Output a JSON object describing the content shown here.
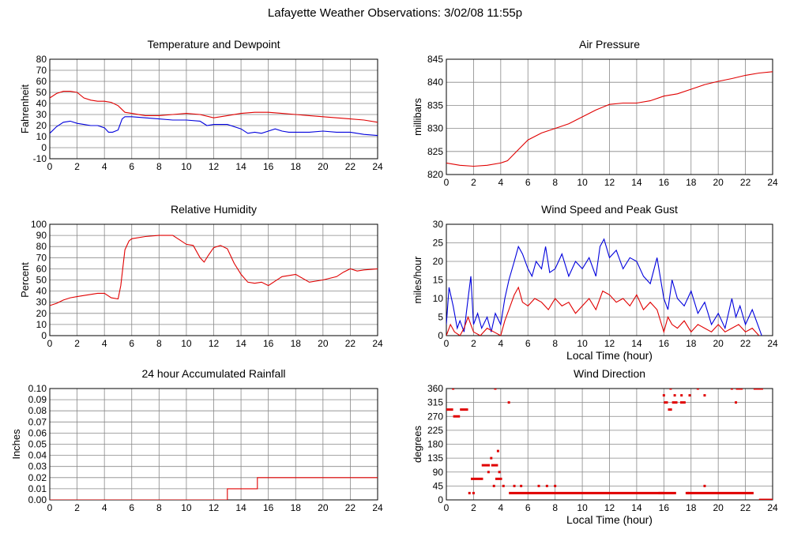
{
  "title": "Lafayette Weather Observations: 3/02/08 11:55p",
  "colors": {
    "red": "#e00000",
    "blue": "#0000dd",
    "grid": "#888888"
  },
  "chart_data": [
    {
      "id": "temp",
      "type": "line",
      "title": "Temperature and Dewpoint",
      "ylabel": "Fahrenheit",
      "xlabel": "",
      "xlim": [
        0,
        24
      ],
      "ylim": [
        -10,
        80
      ],
      "yticks": [
        -10,
        0,
        10,
        20,
        30,
        40,
        50,
        60,
        70,
        80
      ],
      "xticks": [
        0,
        2,
        4,
        6,
        8,
        10,
        12,
        14,
        16,
        18,
        20,
        22,
        24
      ],
      "series": [
        {
          "color": "#e00000",
          "x": [
            0,
            0.5,
            1,
            1.5,
            2,
            2.5,
            3,
            3.5,
            4,
            4.5,
            5,
            5.5,
            6,
            7,
            8,
            9,
            10,
            11,
            12,
            13,
            14,
            15,
            16,
            17,
            18,
            19,
            20,
            21,
            22,
            23,
            24
          ],
          "y": [
            45,
            49,
            51,
            51,
            50,
            45,
            43,
            42,
            42,
            41,
            38,
            32,
            31,
            29,
            29,
            30,
            31,
            30,
            27,
            29,
            31,
            32,
            32,
            31,
            30,
            29,
            28,
            27,
            26,
            25,
            23
          ]
        },
        {
          "color": "#0000dd",
          "x": [
            0,
            0.5,
            1,
            1.5,
            2,
            2.5,
            3,
            3.5,
            4,
            4.3,
            4.6,
            5,
            5.3,
            5.5,
            6,
            7,
            8,
            9,
            10,
            11,
            11.5,
            12,
            13,
            14,
            14.5,
            15,
            15.5,
            16,
            16.5,
            17,
            17.5,
            18,
            19,
            20,
            21,
            22,
            23,
            24
          ],
          "y": [
            13,
            19,
            23,
            24,
            22,
            21,
            20,
            20,
            18,
            14,
            14,
            16,
            26,
            28,
            28,
            27,
            26,
            25,
            25,
            24,
            20,
            21,
            21,
            17,
            13,
            14,
            13,
            15,
            17,
            15,
            14,
            14,
            14,
            15,
            14,
            14,
            12,
            11
          ]
        }
      ]
    },
    {
      "id": "pressure",
      "type": "line",
      "title": "Air Pressure",
      "ylabel": "millibars",
      "xlabel": "",
      "xlim": [
        0,
        24
      ],
      "ylim": [
        820,
        845
      ],
      "yticks": [
        820,
        825,
        830,
        835,
        840,
        845
      ],
      "xticks": [
        0,
        2,
        4,
        6,
        8,
        10,
        12,
        14,
        16,
        18,
        20,
        22,
        24
      ],
      "series": [
        {
          "color": "#e00000",
          "x": [
            0,
            1,
            2,
            3,
            4,
            4.5,
            5,
            5.5,
            6,
            7,
            8,
            9,
            10,
            11,
            12,
            13,
            14,
            15,
            16,
            17,
            18,
            19,
            20,
            21,
            22,
            23,
            24
          ],
          "y": [
            822.5,
            822,
            821.8,
            822,
            822.5,
            823,
            824.5,
            826,
            827.5,
            829,
            830,
            831,
            832.5,
            834,
            835.2,
            835.5,
            835.5,
            836,
            837,
            837.5,
            838.5,
            839.5,
            840.2,
            840.8,
            841.5,
            842,
            842.3
          ]
        }
      ]
    },
    {
      "id": "humidity",
      "type": "line",
      "title": "Relative Humidity",
      "ylabel": "Percent",
      "xlabel": "",
      "xlim": [
        0,
        24
      ],
      "ylim": [
        0,
        100
      ],
      "yticks": [
        0,
        10,
        20,
        30,
        40,
        50,
        60,
        70,
        80,
        90,
        100
      ],
      "xticks": [
        0,
        2,
        4,
        6,
        8,
        10,
        12,
        14,
        16,
        18,
        20,
        22,
        24
      ],
      "series": [
        {
          "color": "#e00000",
          "x": [
            0,
            0.5,
            1,
            1.5,
            2,
            2.5,
            3,
            3.5,
            4,
            4.5,
            5,
            5.2,
            5.5,
            5.8,
            6,
            7,
            8,
            9,
            9.5,
            10,
            10.5,
            11,
            11.3,
            11.6,
            12,
            12.5,
            13,
            13.5,
            14,
            14.5,
            15,
            15.5,
            16,
            16.5,
            17,
            17.5,
            18,
            19,
            20,
            21,
            21.5,
            22,
            22.5,
            23,
            24
          ],
          "y": [
            27,
            29,
            32,
            34,
            35,
            36,
            37,
            38,
            38,
            34,
            33,
            45,
            77,
            85,
            87,
            89,
            90,
            90,
            86,
            82,
            81,
            70,
            66,
            72,
            79,
            81,
            78,
            65,
            55,
            48,
            47,
            48,
            45,
            49,
            53,
            54,
            55,
            48,
            50,
            53,
            57,
            60,
            58,
            59,
            60
          ]
        }
      ]
    },
    {
      "id": "wind",
      "type": "line",
      "title": "Wind Speed and Peak Gust",
      "ylabel": "miles/hour",
      "xlabel": "Local Time (hour)",
      "xlim": [
        0,
        24
      ],
      "ylim": [
        0,
        30
      ],
      "yticks": [
        0,
        5,
        10,
        15,
        20,
        25,
        30
      ],
      "xticks": [
        0,
        2,
        4,
        6,
        8,
        10,
        12,
        14,
        16,
        18,
        20,
        22,
        24
      ],
      "series": [
        {
          "color": "#0000dd",
          "x": [
            0,
            0.2,
            0.5,
            0.8,
            1,
            1.3,
            1.6,
            1.8,
            2,
            2.3,
            2.6,
            3,
            3.3,
            3.6,
            4,
            4.3,
            4.6,
            5,
            5.3,
            5.6,
            6,
            6.3,
            6.6,
            7,
            7.3,
            7.6,
            8,
            8.5,
            9,
            9.5,
            10,
            10.5,
            11,
            11.3,
            11.6,
            12,
            12.5,
            13,
            13.5,
            14,
            14.5,
            15,
            15.5,
            16,
            16.3,
            16.6,
            17,
            17.5,
            18,
            18.5,
            19,
            19.5,
            20,
            20.5,
            21,
            21.3,
            21.6,
            22,
            22.5,
            23,
            23.2
          ],
          "y": [
            3,
            13,
            8,
            2,
            4,
            1,
            10,
            16,
            3,
            6,
            2,
            5,
            1,
            6,
            3,
            10,
            15,
            20,
            24,
            22,
            18,
            16,
            20,
            18,
            24,
            17,
            18,
            22,
            16,
            20,
            18,
            21,
            16,
            24,
            26,
            21,
            23,
            18,
            21,
            20,
            16,
            14,
            21,
            10,
            7,
            15,
            10,
            8,
            12,
            6,
            9,
            3,
            6,
            2,
            10,
            5,
            8,
            3,
            7,
            2,
            0
          ]
        },
        {
          "color": "#e00000",
          "x": [
            0,
            0.3,
            0.6,
            1,
            1.3,
            1.6,
            2,
            2.5,
            3,
            3.5,
            4,
            4.3,
            4.6,
            5,
            5.3,
            5.6,
            6,
            6.5,
            7,
            7.5,
            8,
            8.5,
            9,
            9.5,
            10,
            10.5,
            11,
            11.5,
            12,
            12.5,
            13,
            13.5,
            14,
            14.5,
            15,
            15.5,
            16,
            16.3,
            16.6,
            17,
            17.5,
            18,
            18.5,
            19,
            19.5,
            20,
            20.5,
            21,
            21.5,
            22,
            22.5,
            23
          ],
          "y": [
            0,
            3,
            1,
            0,
            2,
            5,
            1,
            0,
            2,
            1,
            0,
            4,
            7,
            11,
            13,
            9,
            8,
            10,
            9,
            7,
            10,
            8,
            9,
            6,
            8,
            10,
            7,
            12,
            11,
            9,
            10,
            8,
            11,
            7,
            9,
            7,
            1,
            5,
            3,
            2,
            4,
            1,
            3,
            2,
            1,
            3,
            1,
            2,
            3,
            1,
            2,
            0
          ]
        }
      ]
    },
    {
      "id": "rain",
      "type": "line",
      "title": "24 hour Accumulated Rainfall",
      "ylabel": "Inches",
      "xlabel": "",
      "xlim": [
        0,
        24
      ],
      "ylim": [
        0,
        0.1
      ],
      "yticks": [
        0,
        0.01,
        0.02,
        0.03,
        0.04,
        0.05,
        0.06,
        0.07,
        0.08,
        0.09,
        0.1
      ],
      "ytick_labels": [
        "0.00",
        "0.01",
        "0.02",
        "0.03",
        "0.04",
        "0.05",
        "0.06",
        "0.07",
        "0.08",
        "0.09",
        "0.10"
      ],
      "xticks": [
        0,
        2,
        4,
        6,
        8,
        10,
        12,
        14,
        16,
        18,
        20,
        22,
        24
      ],
      "series": [
        {
          "color": "#e00000",
          "x": [
            0,
            13,
            13,
            15.2,
            15.2,
            24
          ],
          "y": [
            0,
            0,
            0.01,
            0.01,
            0.02,
            0.02
          ]
        }
      ]
    },
    {
      "id": "direction",
      "type": "scatter",
      "title": "Wind Direction",
      "ylabel": "degrees",
      "xlabel": "Local Time (hour)",
      "xlim": [
        0,
        24
      ],
      "ylim": [
        0,
        360
      ],
      "yticks": [
        0,
        45,
        90,
        135,
        180,
        225,
        270,
        315,
        360
      ],
      "xticks": [
        0,
        2,
        4,
        6,
        8,
        10,
        12,
        14,
        16,
        18,
        20,
        22,
        24
      ],
      "segments": [
        {
          "x0": 0,
          "x1": 0.5,
          "y": 292
        },
        {
          "x0": 0.5,
          "x1": 1.0,
          "y": 270
        },
        {
          "x0": 1.0,
          "x1": 1.6,
          "y": 292
        },
        {
          "x0": 1.8,
          "x1": 2.7,
          "y": 68
        },
        {
          "x0": 2.6,
          "x1": 3.2,
          "y": 112
        },
        {
          "x0": 3.3,
          "x1": 3.8,
          "y": 112
        },
        {
          "x0": 3.6,
          "x1": 4.1,
          "y": 68
        },
        {
          "x0": 4.6,
          "x1": 16.0,
          "y": 22
        },
        {
          "x0": 15.6,
          "x1": 16.9,
          "y": 22
        },
        {
          "x0": 16.0,
          "x1": 16.3,
          "y": 315
        },
        {
          "x0": 16.6,
          "x1": 17.0,
          "y": 315
        },
        {
          "x0": 16.3,
          "x1": 16.6,
          "y": 292
        },
        {
          "x0": 17.2,
          "x1": 17.6,
          "y": 315
        },
        {
          "x0": 17.6,
          "x1": 22.6,
          "y": 22
        },
        {
          "x0": 21.3,
          "x1": 21.8,
          "y": 360
        },
        {
          "x0": 22.6,
          "x1": 23.3,
          "y": 360
        },
        {
          "x0": 23.0,
          "x1": 24.0,
          "y": 0
        }
      ],
      "points": [
        {
          "x": 0.5,
          "y": 360
        },
        {
          "x": 1.7,
          "y": 22
        },
        {
          "x": 2.0,
          "y": 22
        },
        {
          "x": 3.1,
          "y": 90
        },
        {
          "x": 3.3,
          "y": 135
        },
        {
          "x": 3.5,
          "y": 45
        },
        {
          "x": 3.6,
          "y": 360
        },
        {
          "x": 3.8,
          "y": 158
        },
        {
          "x": 3.9,
          "y": 90
        },
        {
          "x": 4.2,
          "y": 45
        },
        {
          "x": 4.6,
          "y": 315
        },
        {
          "x": 5.0,
          "y": 45
        },
        {
          "x": 5.5,
          "y": 45
        },
        {
          "x": 6.8,
          "y": 45
        },
        {
          "x": 7.4,
          "y": 45
        },
        {
          "x": 8.0,
          "y": 45
        },
        {
          "x": 16.0,
          "y": 338
        },
        {
          "x": 16.5,
          "y": 360
        },
        {
          "x": 16.8,
          "y": 338
        },
        {
          "x": 17.3,
          "y": 338
        },
        {
          "x": 17.9,
          "y": 338
        },
        {
          "x": 18.5,
          "y": 360
        },
        {
          "x": 19.0,
          "y": 338
        },
        {
          "x": 19.0,
          "y": 45
        },
        {
          "x": 21.0,
          "y": 360
        },
        {
          "x": 21.3,
          "y": 315
        },
        {
          "x": 17.8,
          "y": 22
        }
      ]
    }
  ]
}
